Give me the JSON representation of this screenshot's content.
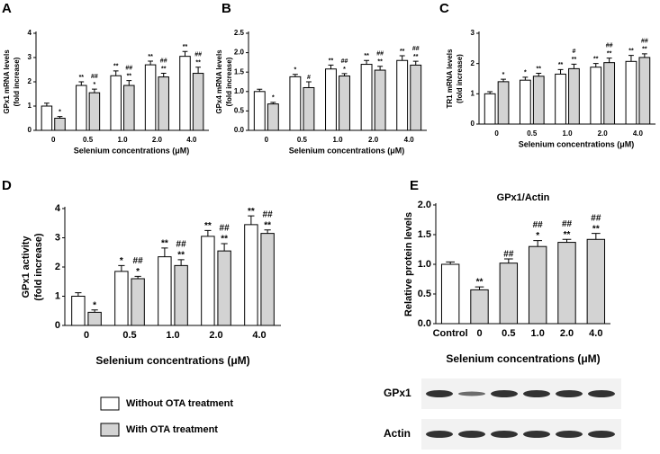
{
  "chart_data": [
    {
      "type": "bar",
      "panel": "A",
      "ylabel": [
        "GPx1 mRNA levels",
        "(fold increase)"
      ],
      "xlabel": "Selenium concentrations (μM)",
      "categories": [
        "0",
        "0.5",
        "1.0",
        "2.0",
        "4.0"
      ],
      "ylim": [
        0,
        4
      ],
      "yticks": [
        0,
        1,
        2,
        3,
        4
      ],
      "series": [
        {
          "color": "#ffffff",
          "values": [
            1.0,
            1.85,
            2.25,
            2.7,
            3.05
          ],
          "errors": [
            0.12,
            0.15,
            0.2,
            0.15,
            0.2
          ],
          "labels": [
            [],
            [
              "**"
            ],
            [
              "**"
            ],
            [
              "**"
            ],
            [
              "**"
            ]
          ]
        },
        {
          "color": "#d3d3d3",
          "values": [
            0.5,
            1.55,
            1.85,
            2.2,
            2.35
          ],
          "errors": [
            0.07,
            0.15,
            0.2,
            0.15,
            0.25
          ],
          "labels": [
            [
              "*"
            ],
            [
              "##",
              "*"
            ],
            [
              "##",
              "**"
            ],
            [
              "##",
              "**"
            ],
            [
              "##",
              "**"
            ]
          ]
        }
      ]
    },
    {
      "type": "bar",
      "panel": "B",
      "ylabel": [
        "GPx4 mRNA levels",
        "(fold increase)"
      ],
      "xlabel": "Selenium concentrations (μM)",
      "categories": [
        "0",
        "0.5",
        "1.0",
        "2.0",
        "4.0"
      ],
      "ylim": [
        0,
        2.5
      ],
      "yticks": [
        {
          "value": 0,
          "label": "0.0"
        },
        0.5,
        {
          "value": 1,
          "label": "1.0"
        },
        1.5,
        {
          "value": 2,
          "label": "2.0"
        },
        2.5
      ],
      "series": [
        {
          "color": "#ffffff",
          "values": [
            1.0,
            1.38,
            1.58,
            1.7,
            1.8
          ],
          "errors": [
            0.06,
            0.06,
            0.1,
            0.1,
            0.12
          ],
          "labels": [
            [],
            [
              "*"
            ],
            [
              "**"
            ],
            [
              "**"
            ],
            [
              "**"
            ]
          ]
        },
        {
          "color": "#d3d3d3",
          "values": [
            0.68,
            1.1,
            1.4,
            1.55,
            1.68
          ],
          "errors": [
            0.04,
            0.15,
            0.06,
            0.1,
            0.1
          ],
          "labels": [
            [
              "*"
            ],
            [
              "#"
            ],
            [
              "##",
              "*"
            ],
            [
              "##",
              "**"
            ],
            [
              "##",
              "**"
            ]
          ]
        }
      ]
    },
    {
      "type": "bar",
      "panel": "C",
      "ylabel": [
        "TR1 mRNA levels",
        "(fold increase)"
      ],
      "xlabel": "Selenium concentrations (μM)",
      "categories": [
        "0",
        "0.5",
        "1.0",
        "2.0",
        "4.0"
      ],
      "ylim": [
        0,
        3
      ],
      "yticks": [
        0,
        1,
        2,
        3
      ],
      "series": [
        {
          "color": "#ffffff",
          "values": [
            1.0,
            1.45,
            1.65,
            1.88,
            2.07
          ],
          "errors": [
            0.07,
            0.1,
            0.15,
            0.12,
            0.2
          ],
          "labels": [
            [],
            [
              "*"
            ],
            [
              "**"
            ],
            [
              "**"
            ],
            [
              "**"
            ]
          ]
        },
        {
          "color": "#d3d3d3",
          "values": [
            1.4,
            1.58,
            1.83,
            2.03,
            2.2
          ],
          "errors": [
            0.08,
            0.1,
            0.15,
            0.15,
            0.12
          ],
          "labels": [
            [
              "*"
            ],
            [
              "**"
            ],
            [
              "#",
              "**"
            ],
            [
              "##",
              "**"
            ],
            [
              "##",
              "**"
            ]
          ]
        }
      ]
    },
    {
      "type": "bar",
      "panel": "D",
      "ylabel": [
        "GPx1 activity",
        "(fold increase)"
      ],
      "xlabel": "Selenium concentrations (μM)",
      "categories": [
        "0",
        "0.5",
        "1.0",
        "2.0",
        "4.0"
      ],
      "ylim": [
        0,
        4
      ],
      "yticks": [
        0,
        1,
        2,
        3,
        4
      ],
      "series": [
        {
          "color": "#ffffff",
          "values": [
            1.0,
            1.85,
            2.35,
            3.05,
            3.45
          ],
          "errors": [
            0.12,
            0.2,
            0.3,
            0.2,
            0.3
          ],
          "labels": [
            [],
            [
              "*"
            ],
            [
              "**"
            ],
            [
              "**"
            ],
            [
              "**"
            ]
          ]
        },
        {
          "color": "#d3d3d3",
          "values": [
            0.45,
            1.6,
            2.05,
            2.55,
            3.15
          ],
          "errors": [
            0.08,
            0.08,
            0.2,
            0.25,
            0.12
          ],
          "labels": [
            [
              "*"
            ],
            [
              "##",
              "*"
            ],
            [
              "##",
              "**"
            ],
            [
              "##",
              "**"
            ],
            [
              "##",
              "**"
            ]
          ]
        }
      ]
    },
    {
      "type": "bar",
      "panel": "E",
      "title": "GPx1/Actin",
      "ylabel": [
        "Relative protein levels"
      ],
      "xlabel": "Selenium concentrations (μM)",
      "categories": [
        "Control",
        "0",
        "0.5",
        "1.0",
        "2.0",
        "4.0"
      ],
      "ylim": [
        0,
        2
      ],
      "yticks": [
        {
          "value": 0,
          "label": "0.0"
        },
        0.5,
        {
          "value": 1,
          "label": "1.0"
        },
        1.5,
        {
          "value": 2,
          "label": "2.0"
        }
      ],
      "series": [
        {
          "colors": [
            "#ffffff",
            "#d3d3d3",
            "#d3d3d3",
            "#d3d3d3",
            "#d3d3d3",
            "#d3d3d3"
          ],
          "values": [
            1.0,
            0.57,
            1.02,
            1.3,
            1.37,
            1.42
          ],
          "errors": [
            0.04,
            0.05,
            0.07,
            0.1,
            0.05,
            0.1
          ],
          "labels": [
            [],
            [
              "**"
            ],
            [
              "##"
            ],
            [
              "##",
              "*"
            ],
            [
              "##",
              "**"
            ],
            [
              "##",
              "**"
            ]
          ]
        }
      ],
      "blot_rows": [
        "GPx1",
        "Actin"
      ]
    }
  ],
  "legend": [
    {
      "name": "Without OTA treatment",
      "color": "#ffffff"
    },
    {
      "name": "With OTA treatment",
      "color": "#d3d3d3"
    }
  ]
}
